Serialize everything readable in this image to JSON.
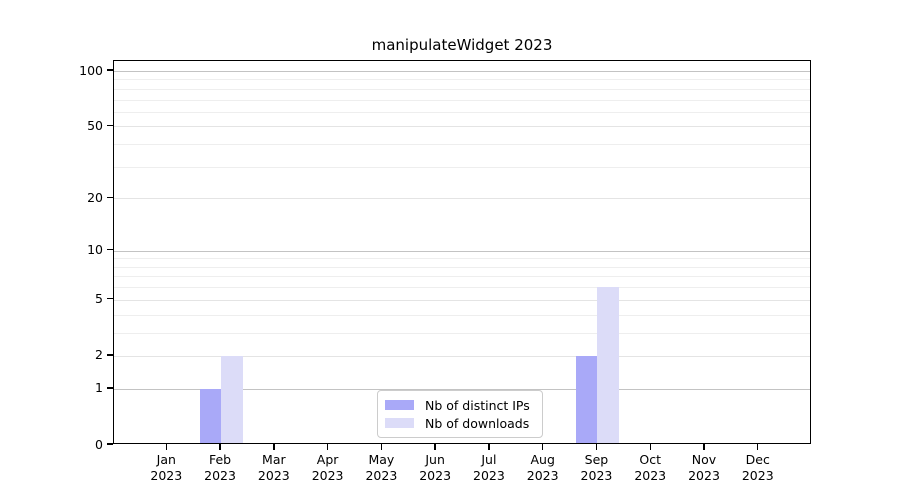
{
  "chart_data": {
    "type": "bar",
    "title": "manipulateWidget 2023",
    "categories": [
      "Jan",
      "Feb",
      "Mar",
      "Apr",
      "May",
      "Jun",
      "Jul",
      "Aug",
      "Sep",
      "Oct",
      "Nov",
      "Dec"
    ],
    "x_year": "2023",
    "series": [
      {
        "name": "Nb of distinct IPs",
        "color": "#a9a9f8",
        "values": [
          0,
          1,
          0,
          0,
          0,
          0,
          0,
          0,
          2,
          0,
          0,
          0
        ]
      },
      {
        "name": "Nb of downloads",
        "color": "#dcdcf8",
        "values": [
          0,
          2,
          0,
          0,
          0,
          0,
          0,
          0,
          6,
          0,
          0,
          0
        ]
      }
    ],
    "yscale": "log1p",
    "yticks": [
      0,
      1,
      2,
      5,
      10,
      20,
      50,
      100
    ],
    "ytick_labels": [
      "0",
      "1",
      "2",
      "5",
      "10",
      "20",
      "50",
      "100"
    ],
    "decade_gridlines": [
      1,
      10,
      100
    ],
    "minor_gridlines": [
      3,
      4,
      6,
      7,
      8,
      9,
      30,
      40,
      60,
      70,
      80,
      90
    ],
    "ylim": [
      0,
      113
    ],
    "grid": true,
    "legend_position": "bottom-center-inside",
    "colors": {
      "decade_grid": "#c3c3c3",
      "labeled_grid": "#e4e4e4",
      "minor_grid": "#eeeeee",
      "spine": "#000000"
    }
  }
}
